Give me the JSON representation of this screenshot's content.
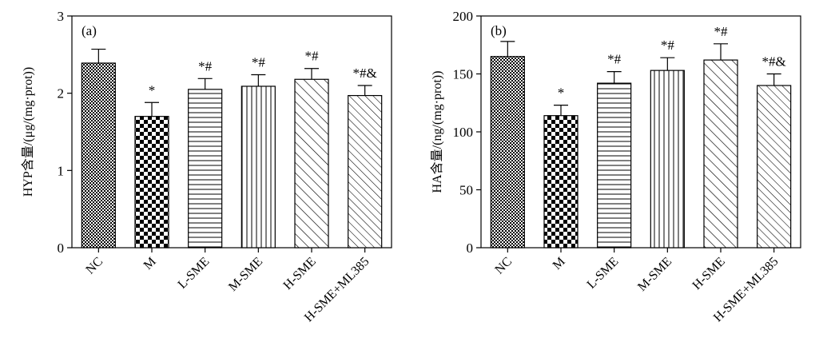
{
  "chart_data": [
    {
      "type": "bar",
      "panel_label": "(a)",
      "ylabel": "HYP含量/(μg/(mg·prot))",
      "ylim": [
        0,
        3
      ],
      "yticks": [
        0,
        1,
        2,
        3
      ],
      "categories": [
        "NC",
        "M",
        "L-SME",
        "M-SME",
        "H-SME",
        "H-SME+ML385"
      ],
      "values": [
        2.39,
        1.7,
        2.05,
        2.09,
        2.18,
        1.97
      ],
      "errors": [
        0.18,
        0.18,
        0.14,
        0.15,
        0.14,
        0.13
      ],
      "annotations": [
        "",
        "*",
        "*#",
        "*#",
        "*#",
        "*#&"
      ],
      "patterns": [
        "dense-checker",
        "checker",
        "horizontal-lines",
        "vertical-lines",
        "diagonal-lines",
        "diagonal-lines-dense"
      ],
      "grid": false,
      "legend": "none"
    },
    {
      "type": "bar",
      "panel_label": "(b)",
      "ylabel": "HA含量/(ng/(mg·prot))",
      "ylim": [
        0,
        200
      ],
      "yticks": [
        0,
        50,
        100,
        150,
        200
      ],
      "categories": [
        "NC",
        "M",
        "L-SME",
        "M-SME",
        "H-SME",
        "H-SME+ML385"
      ],
      "values": [
        165,
        114,
        142,
        153,
        162,
        140
      ],
      "errors": [
        13,
        9,
        10,
        11,
        14,
        10
      ],
      "annotations": [
        "",
        "*",
        "*#",
        "*#",
        "*#",
        "*#&"
      ],
      "patterns": [
        "dense-checker",
        "checker",
        "horizontal-lines",
        "vertical-lines",
        "diagonal-lines",
        "diagonal-lines-dense"
      ],
      "grid": false,
      "legend": "none"
    }
  ]
}
